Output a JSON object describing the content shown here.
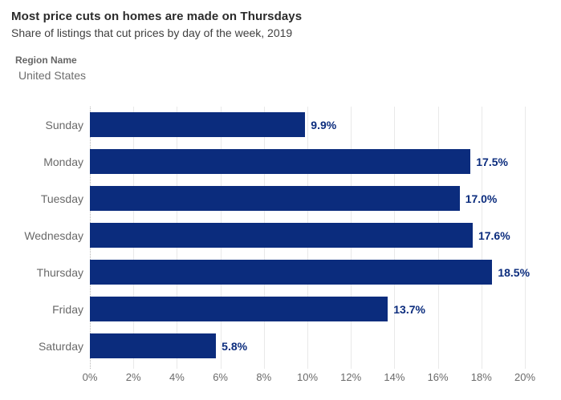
{
  "header": {
    "title": "Most price cuts on homes are made on Thursdays",
    "subtitle": "Share of listings that cut prices by day of the week, 2019"
  },
  "filter": {
    "label": "Region Name",
    "value": "United States"
  },
  "chart_data": {
    "type": "bar",
    "orientation": "horizontal",
    "categories": [
      "Sunday",
      "Monday",
      "Tuesday",
      "Wednesday",
      "Thursday",
      "Friday",
      "Saturday"
    ],
    "values": [
      9.9,
      17.5,
      17.0,
      17.6,
      18.5,
      13.7,
      5.8
    ],
    "value_labels": [
      "9.9%",
      "17.5%",
      "17.0%",
      "17.6%",
      "18.5%",
      "13.7%",
      "5.8%"
    ],
    "xlim": [
      0,
      20
    ],
    "x_tick_values": [
      0,
      2,
      4,
      6,
      8,
      10,
      12,
      14,
      16,
      18,
      20
    ],
    "x_tick_labels": [
      "0%",
      "2%",
      "4%",
      "6%",
      "8%",
      "10%",
      "12%",
      "14%",
      "16%",
      "18%",
      "20%"
    ],
    "grid": "vertical-light",
    "legend": "none",
    "bar_color": "#0b2c7d",
    "value_label_color": "#0b2c7d",
    "grid_color": "#e9e9e9",
    "zero_axis_style": "dotted"
  }
}
